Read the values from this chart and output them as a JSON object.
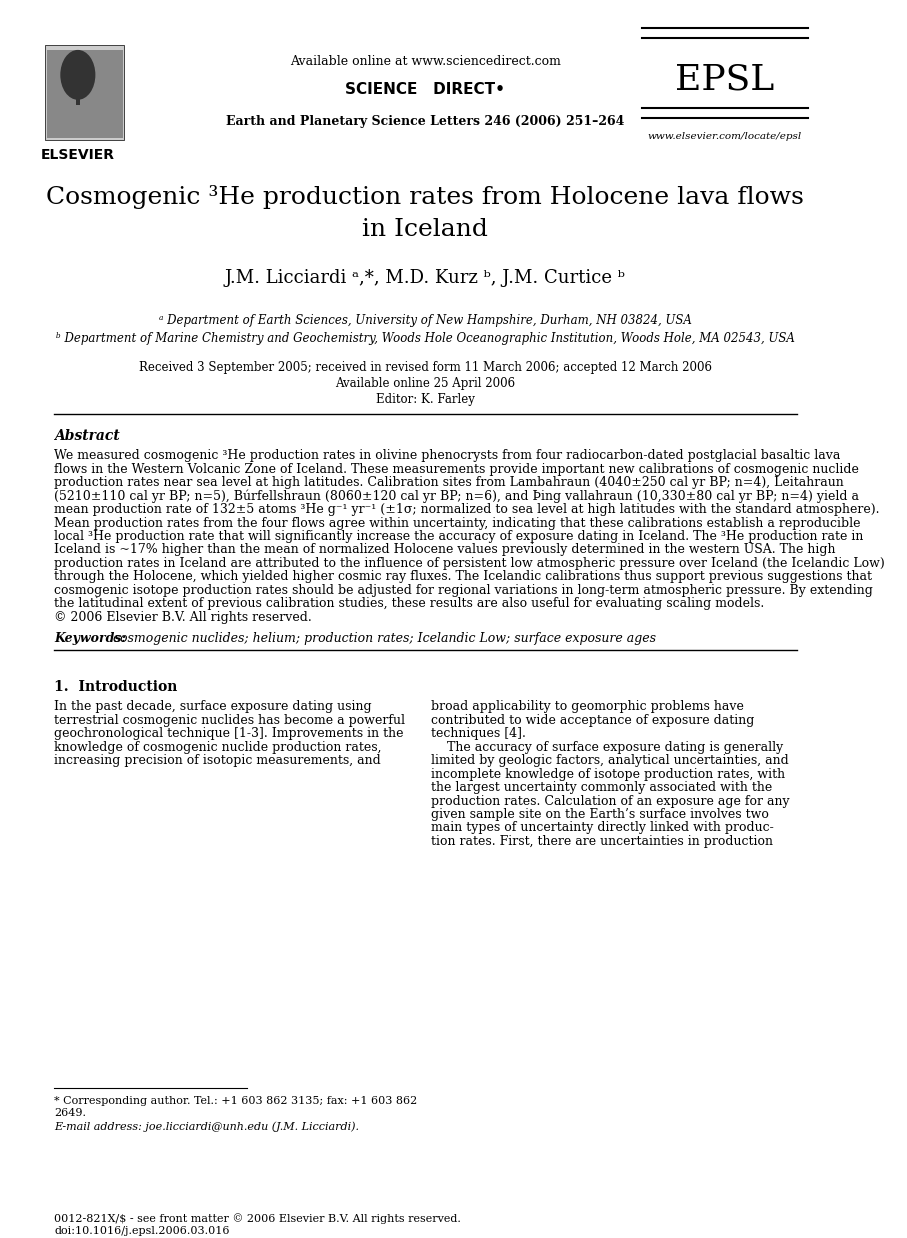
{
  "bg_color": "#ffffff",
  "header_top_text": "Available online at www.sciencedirect.com",
  "journal_line": "Earth and Planetary Science Letters 246 (2006) 251–264",
  "epsl_text": "EPSL",
  "website_text": "www.elsevier.com/locate/epsl",
  "elsevier_text": "ELSEVIER",
  "sciencedirect_text": "SCIENCE   DIRECT•",
  "title_line1": "Cosmogenic ³He production rates from Holocene lava flows",
  "title_line2": "in Iceland",
  "authors": "J.M. Licciardi ᵃ,*, M.D. Kurz ᵇ, J.M. Curtice ᵇ",
  "affil_a": "ᵃ Department of Earth Sciences, University of New Hampshire, Durham, NH 03824, USA",
  "affil_b": "ᵇ Department of Marine Chemistry and Geochemistry, Woods Hole Oceanographic Institution, Woods Hole, MA 02543, USA",
  "received": "Received 3 September 2005; received in revised form 11 March 2006; accepted 12 March 2006",
  "available": "Available online 25 April 2006",
  "editor": "Editor: K. Farley",
  "abstract_label": "Abstract",
  "abstract_text": "We measured cosmogenic ³He production rates in olivine phenocrysts from four radiocarbon-dated postglacial basaltic lava\nflows in the Western Volcanic Zone of Iceland. These measurements provide important new calibrations of cosmogenic nuclide\nproduction rates near sea level at high latitudes. Calibration sites from Lambahraun (4040±250 cal yr BP; n=4), Leitahraun\n(5210±110 cal yr BP; n=5), Búrfellshraun (8060±120 cal yr BP; n=6), and Þing vallahraun (10,330±80 cal yr BP; n=4) yield a\nmean production rate of 132±5 atoms ³He g⁻¹ yr⁻¹ (±1σ; normalized to sea level at high latitudes with the standard atmosphere).\nMean production rates from the four flows agree within uncertainty, indicating that these calibrations establish a reproducible\nlocal ³He production rate that will significantly increase the accuracy of exposure dating in Iceland. The ³He production rate in\nIceland is ~17% higher than the mean of normalized Holocene values previously determined in the western USA. The high\nproduction rates in Iceland are attributed to the influence of persistent low atmospheric pressure over Iceland (the Icelandic Low)\nthrough the Holocene, which yielded higher cosmic ray fluxes. The Icelandic calibrations thus support previous suggestions that\ncosmogenic isotope production rates should be adjusted for regional variations in long-term atmospheric pressure. By extending\nthe latitudinal extent of previous calibration studies, these results are also useful for evaluating scaling models.\n© 2006 Elsevier B.V. All rights reserved.",
  "keywords_label": "Keywords:",
  "keywords_text": " cosmogenic nuclides; helium; production rates; Icelandic Low; surface exposure ages",
  "section1_label": "1.  Introduction",
  "intro_col1": "In the past decade, surface exposure dating using\nterrestrial cosmogenic nuclides has become a powerful\ngeochronological technique [1-3]. Improvements in the\nknowledge of cosmogenic nuclide production rates,\nincreasing precision of isotopic measurements, and",
  "intro_col2": "broad applicability to geomorphic problems have\ncontributed to wide acceptance of exposure dating\ntechniques [4].\n    The accuracy of surface exposure dating is generally\nlimited by geologic factors, analytical uncertainties, and\nincomplete knowledge of isotope production rates, with\nthe largest uncertainty commonly associated with the\nproduction rates. Calculation of an exposure age for any\ngiven sample site on the Earth’s surface involves two\nmain types of uncertainty directly linked with produc-\ntion rates. First, there are uncertainties in production",
  "footnote_star": "* Corresponding author. Tel.: +1 603 862 3135; fax: +1 603 862\n2649.",
  "footnote_email": "E-mail address: joe.licciardi@unh.edu (J.M. Licciardi).",
  "bottom_line1": "0012-821X/$ - see front matter © 2006 Elsevier B.V. All rights reserved.",
  "bottom_line2": "doi:10.1016/j.epsl.2006.03.016"
}
